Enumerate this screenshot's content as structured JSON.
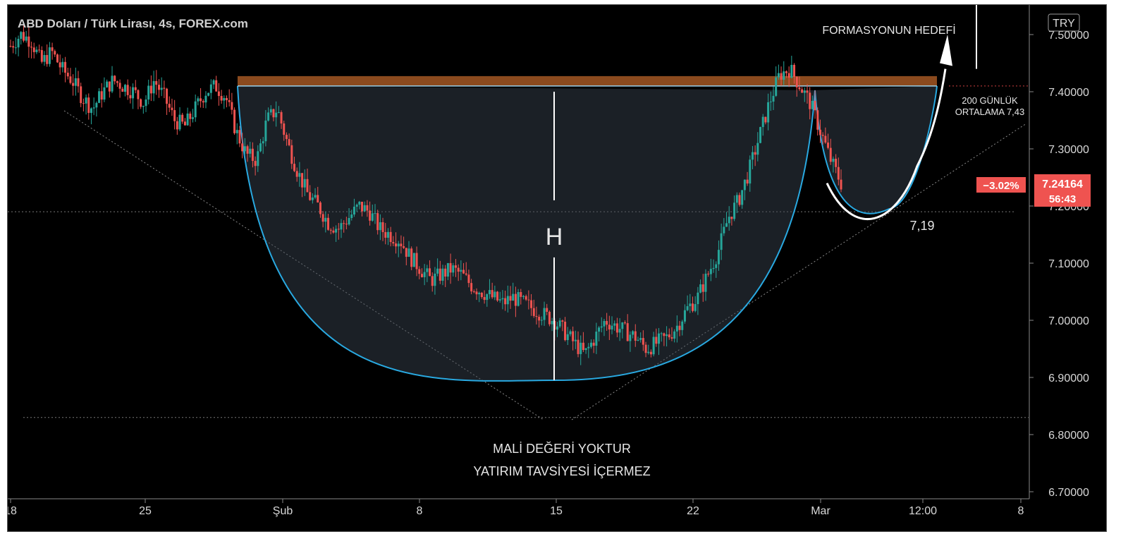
{
  "chart_data": {
    "type": "candlestick",
    "title": "ABD Doları / Türk Lirası, 4s, FOREX.com",
    "currency": "TRY",
    "ylim": [
      6.7,
      7.54
    ],
    "yticks": [
      "7.50000",
      "7.40000",
      "7.30000",
      "7.20000",
      "7.10000",
      "7.00000",
      "6.90000",
      "6.80000",
      "6.70000"
    ],
    "ytick_values": [
      7.5,
      7.4,
      7.3,
      7.2,
      7.1,
      7.0,
      6.9,
      6.8,
      6.7
    ],
    "xticks": [
      "18",
      "25",
      "Şub",
      "8",
      "15",
      "22",
      "Mar",
      "12:00",
      "8"
    ],
    "last_price": "7.24164",
    "last_price_value": 7.24164,
    "countdown": "56:43",
    "change_pct": "−3.02%",
    "support_level_value": 7.19,
    "bottom_dotted_level_value": 6.83,
    "resistance_band_values": [
      7.41,
      7.43
    ],
    "depth_value": 6.895,
    "colors": {
      "up": "#26a69a",
      "down": "#ef5350",
      "cup": "#29a9e1",
      "band": "#8b4a1e",
      "price_label": "#ef5350"
    },
    "candle_path": [
      7.48,
      7.5,
      7.49,
      7.45,
      7.47,
      7.44,
      7.42,
      7.39,
      7.37,
      7.4,
      7.42,
      7.41,
      7.4,
      7.38,
      7.42,
      7.39,
      7.35,
      7.34,
      7.37,
      7.4,
      7.41,
      7.39,
      7.33,
      7.29,
      7.28,
      7.35,
      7.37,
      7.31,
      7.26,
      7.22,
      7.2,
      7.17,
      7.16,
      7.18,
      7.2,
      7.19,
      7.16,
      7.15,
      7.14,
      7.11,
      7.09,
      7.07,
      7.08,
      7.09,
      7.08,
      7.06,
      7.05,
      7.04,
      7.03,
      7.04,
      7.03,
      7.02,
      7.01,
      7.0,
      6.98,
      6.96,
      6.94,
      6.97,
      7.0,
      6.99,
      6.98,
      6.97,
      6.95,
      6.96,
      6.97,
      6.99,
      7.02,
      7.04,
      7.08,
      7.12,
      7.18,
      7.21,
      7.26,
      7.32,
      7.38,
      7.43,
      7.44,
      7.41,
      7.38,
      7.33,
      7.28,
      7.24
    ]
  },
  "annotations": {
    "target_label": "FORMASYONUN HEDEFİ",
    "ma_line1": "200 GÜNLÜK",
    "ma_line2": "ORTALAMA 7,43",
    "handle_price": "7,19",
    "height_label": "H",
    "disclaimer1": "MALİ DEĞERİ YOKTUR",
    "disclaimer2": "YATIRIM TAVSİYESİ İÇERMEZ"
  }
}
